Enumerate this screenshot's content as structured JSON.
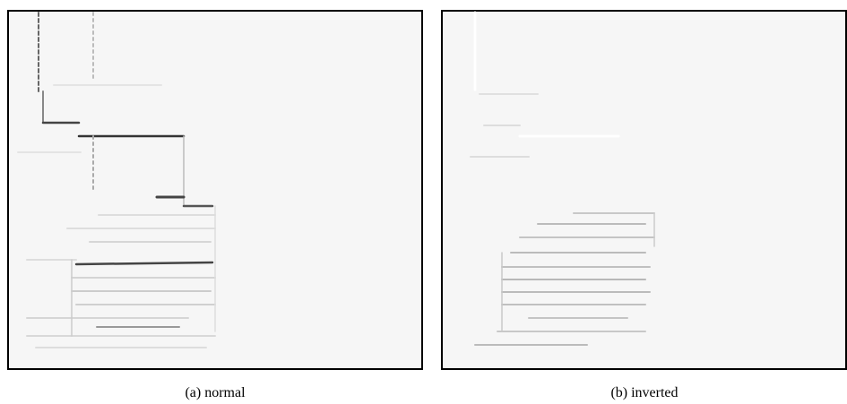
{
  "figure": {
    "panels": [
      {
        "caption": "(a) normal"
      },
      {
        "caption": "(b) inverted"
      }
    ]
  }
}
